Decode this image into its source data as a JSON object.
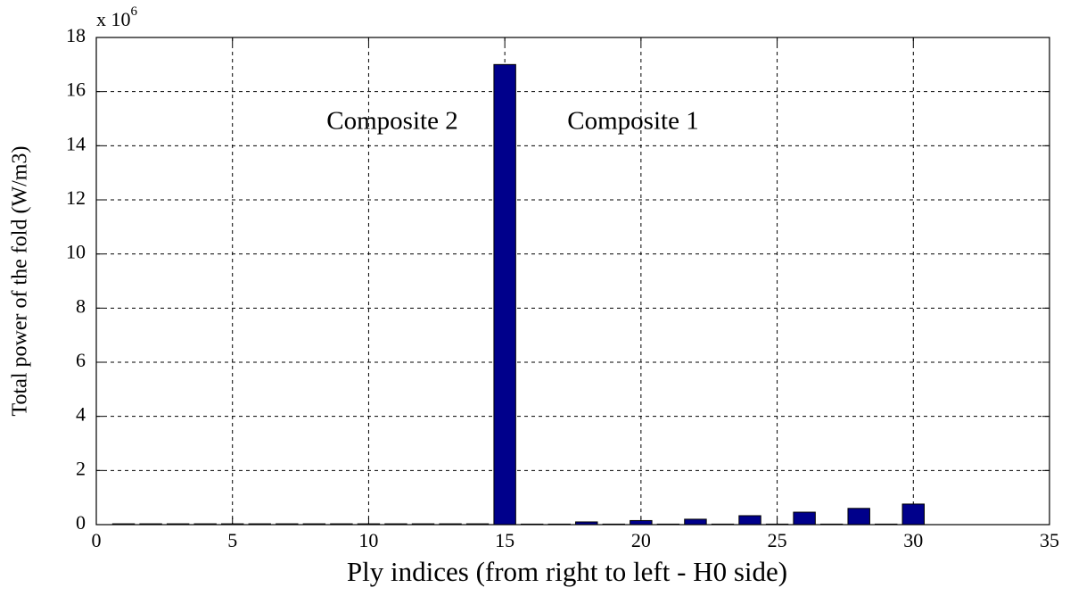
{
  "chart_data": {
    "type": "bar",
    "x_label": "Ply indices (from right to left - H0 side)",
    "y_label": "Total power of the fold (W/m3)",
    "y_multiplier": {
      "base": "x 10",
      "exponent": "6"
    },
    "x": [
      1,
      2,
      3,
      4,
      5,
      6,
      7,
      8,
      9,
      10,
      11,
      12,
      13,
      14,
      15,
      16,
      17,
      18,
      19,
      20,
      21,
      22,
      23,
      24,
      25,
      26,
      27,
      28,
      29,
      30
    ],
    "values": [
      0.03,
      0.03,
      0.03,
      0.03,
      0.03,
      0.03,
      0.03,
      0.03,
      0.03,
      0.03,
      0.03,
      0.03,
      0.03,
      0.03,
      17,
      0.02,
      0.02,
      0.1,
      0.02,
      0.15,
      0.02,
      0.2,
      0.02,
      0.33,
      0.02,
      0.46,
      0.02,
      0.6,
      0.02,
      0.76
    ],
    "color": "#00008b",
    "bar_width": 0.8,
    "xlim": [
      0,
      35
    ],
    "xticks": [
      0,
      5,
      10,
      15,
      20,
      25,
      30,
      35
    ],
    "ylim": [
      0,
      18
    ],
    "yticks": [
      0,
      2,
      4,
      6,
      8,
      10,
      12,
      14,
      16,
      18
    ],
    "grid": true,
    "annotations": [
      "Composite 2",
      "Composite 1"
    ]
  }
}
